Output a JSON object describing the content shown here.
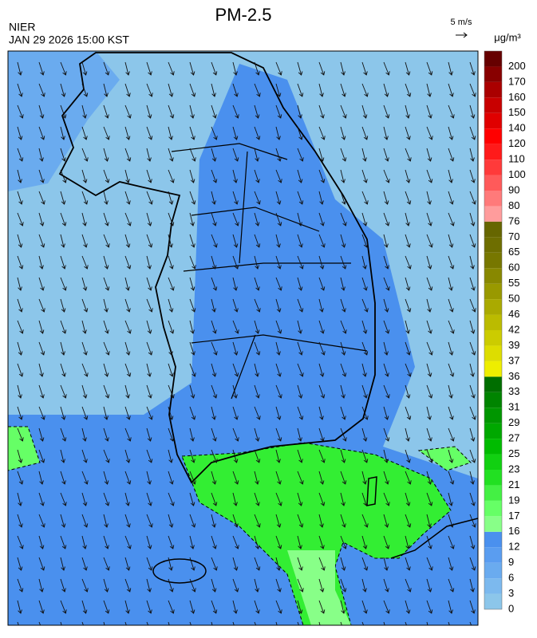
{
  "header": {
    "title": "PM-2.5",
    "agency": "NIER",
    "datetime": "JAN 29 2026 15:00 KST",
    "wind_scale": "5 m/s"
  },
  "legend": {
    "unit": "μg/m³",
    "ticks": [
      0,
      3,
      6,
      9,
      12,
      16,
      17,
      19,
      21,
      23,
      25,
      27,
      29,
      31,
      33,
      36,
      37,
      39,
      42,
      46,
      50,
      55,
      60,
      65,
      70,
      76,
      80,
      90,
      100,
      110,
      120,
      140,
      150,
      160,
      170,
      200
    ],
    "colors": [
      "#8cc6ea",
      "#7cb9ee",
      "#6aabef",
      "#5a9df0",
      "#4a90ee",
      "#88ff88",
      "#66ff66",
      "#44f044",
      "#22e022",
      "#11d011",
      "#00bb00",
      "#00a800",
      "#009600",
      "#008400",
      "#006e00",
      "#eeee00",
      "#dddd00",
      "#cccc00",
      "#bbbb00",
      "#aaaa00",
      "#999900",
      "#888800",
      "#777700",
      "#6e6e00",
      "#666600",
      "#ff9c9c",
      "#ff7a7a",
      "#ff5a5a",
      "#ff3a3a",
      "#ff1a1a",
      "#ff0000",
      "#e00000",
      "#c80000",
      "#aa0000",
      "#880000",
      "#660000"
    ]
  }
}
